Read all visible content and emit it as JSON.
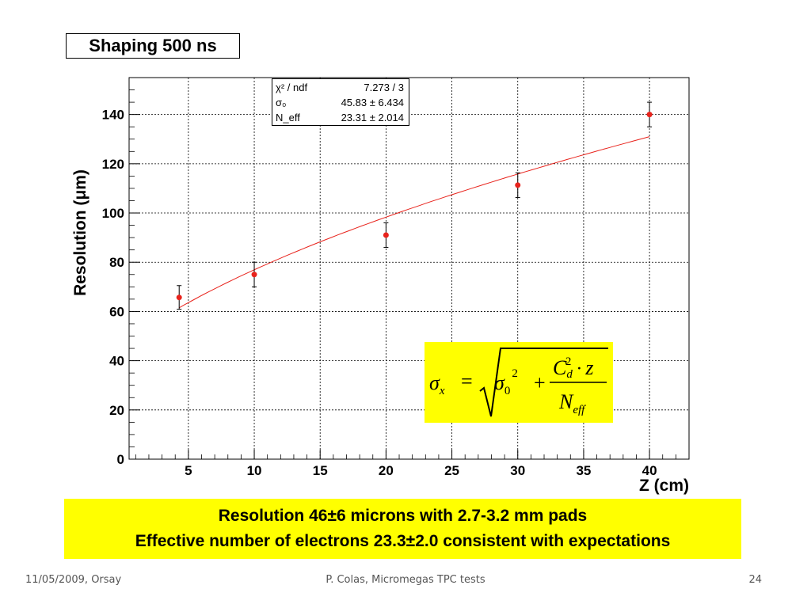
{
  "slide": {
    "title": "Shaping 500 ns",
    "conclusion": [
      "Resolution 46±6 microns with 2.7-3.2 mm pads",
      "Effective number of electrons 23.3±2.0 consistent with expectations"
    ],
    "footer": {
      "date": "11/05/2009, Orsay",
      "center": "P. Colas, Micromegas TPC tests",
      "page": "24"
    }
  },
  "stats": {
    "rows": [
      {
        "label": "χ² / ndf",
        "value": "7.273 / 3"
      },
      {
        "label": "σ₀",
        "value": "45.83 ± 6.434"
      },
      {
        "label": "N_eff",
        "value": "23.31 ± 2.014"
      }
    ]
  },
  "formula": {
    "lhs": "σx",
    "term1": "σ0²",
    "numerator": "Cd²·z",
    "denominator": "Neff"
  },
  "chart_data": {
    "type": "scatter",
    "xlabel": "Z (cm)",
    "ylabel": "Resolution (μm)",
    "xlim": [
      0.5,
      43
    ],
    "ylim": [
      0,
      155
    ],
    "x_ticks": [
      5,
      10,
      15,
      20,
      25,
      30,
      35,
      40
    ],
    "y_ticks": [
      0,
      20,
      40,
      60,
      80,
      100,
      120,
      140
    ],
    "grid": true,
    "points": [
      {
        "x": 4.3,
        "y": 65.7,
        "err": 4.8
      },
      {
        "x": 10,
        "y": 75,
        "err": 5.0
      },
      {
        "x": 20,
        "y": 91,
        "err": 5.0
      },
      {
        "x": 30,
        "y": 111.3,
        "err": 5.0
      },
      {
        "x": 40,
        "y": 140,
        "err": 5.0
      }
    ],
    "fit": {
      "function": "sqrt(sigma0^2 + Cd^2*z/Neff)",
      "sigma0": 45.83,
      "x_range": [
        4.3,
        40
      ],
      "y_range": [
        61.5,
        131
      ]
    },
    "colors": {
      "points": "#e8231c",
      "fit": "#e8231c",
      "errorbars": "#000000"
    }
  }
}
